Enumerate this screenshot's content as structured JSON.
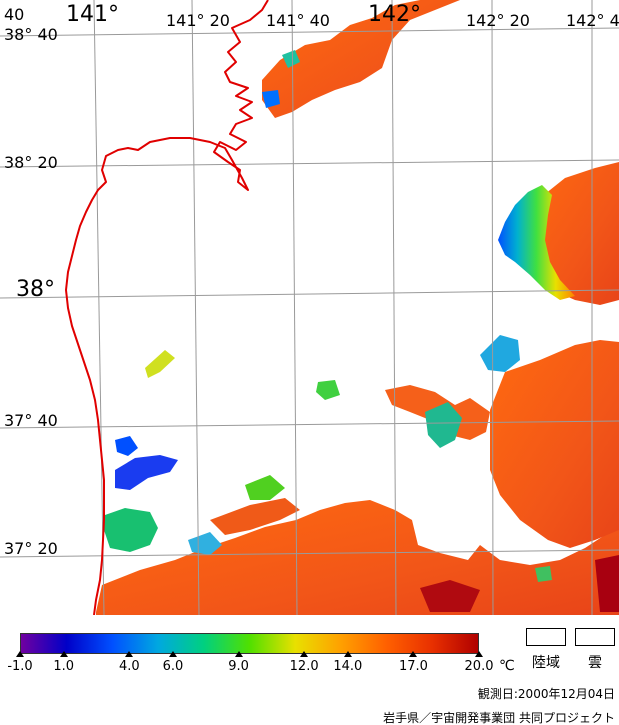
{
  "map": {
    "lon_labels": [
      {
        "key": "lon-140-40",
        "text": "40"
      },
      {
        "key": "lon-141",
        "text": "141°"
      },
      {
        "key": "lon-141-20",
        "text": "141° 20"
      },
      {
        "key": "lon-141-40",
        "text": "141° 40"
      },
      {
        "key": "lon-142",
        "text": "142°"
      },
      {
        "key": "lon-142-20",
        "text": "142° 20"
      },
      {
        "key": "lon-142-40",
        "text": "142° 4"
      }
    ],
    "lat_labels": [
      {
        "key": "lat-38-40",
        "text": "38° 40"
      },
      {
        "key": "lat-38-20",
        "text": "38° 20"
      },
      {
        "key": "lat-38",
        "text": "38°"
      },
      {
        "key": "lat-37-40",
        "text": "37° 40"
      },
      {
        "key": "lat-37-20",
        "text": "37° 20"
      }
    ],
    "coastline_color": "#e00000",
    "gridline_color": "#9a9a9a",
    "land_color": "#ffffff"
  },
  "legend": {
    "colorbar_min": -1.0,
    "colorbar_max": 20.0,
    "colors": [
      "#7000a0",
      "#0000c8",
      "#0050ff",
      "#00a8e0",
      "#00d080",
      "#50e000",
      "#e8e000",
      "#ffa000",
      "#ff6000",
      "#e83000",
      "#b00000"
    ],
    "ticks": [
      {
        "value": -1.0,
        "label": "-1.0"
      },
      {
        "value": 1.0,
        "label": "1.0"
      },
      {
        "value": 4.0,
        "label": "4.0"
      },
      {
        "value": 6.0,
        "label": "6.0"
      },
      {
        "value": 9.0,
        "label": "9.0"
      },
      {
        "value": 12.0,
        "label": "12.0"
      },
      {
        "value": 14.0,
        "label": "14.0"
      },
      {
        "value": 17.0,
        "label": "17.0"
      },
      {
        "value": 20.0,
        "label": "20.0"
      }
    ],
    "unit": "℃",
    "land_label": "陸域",
    "cloud_label": "雲"
  },
  "footer": {
    "observation_date": "観測日:2000年12月04日",
    "credit": "岩手県／宇宙開発事業団 共同プロジェクト"
  }
}
